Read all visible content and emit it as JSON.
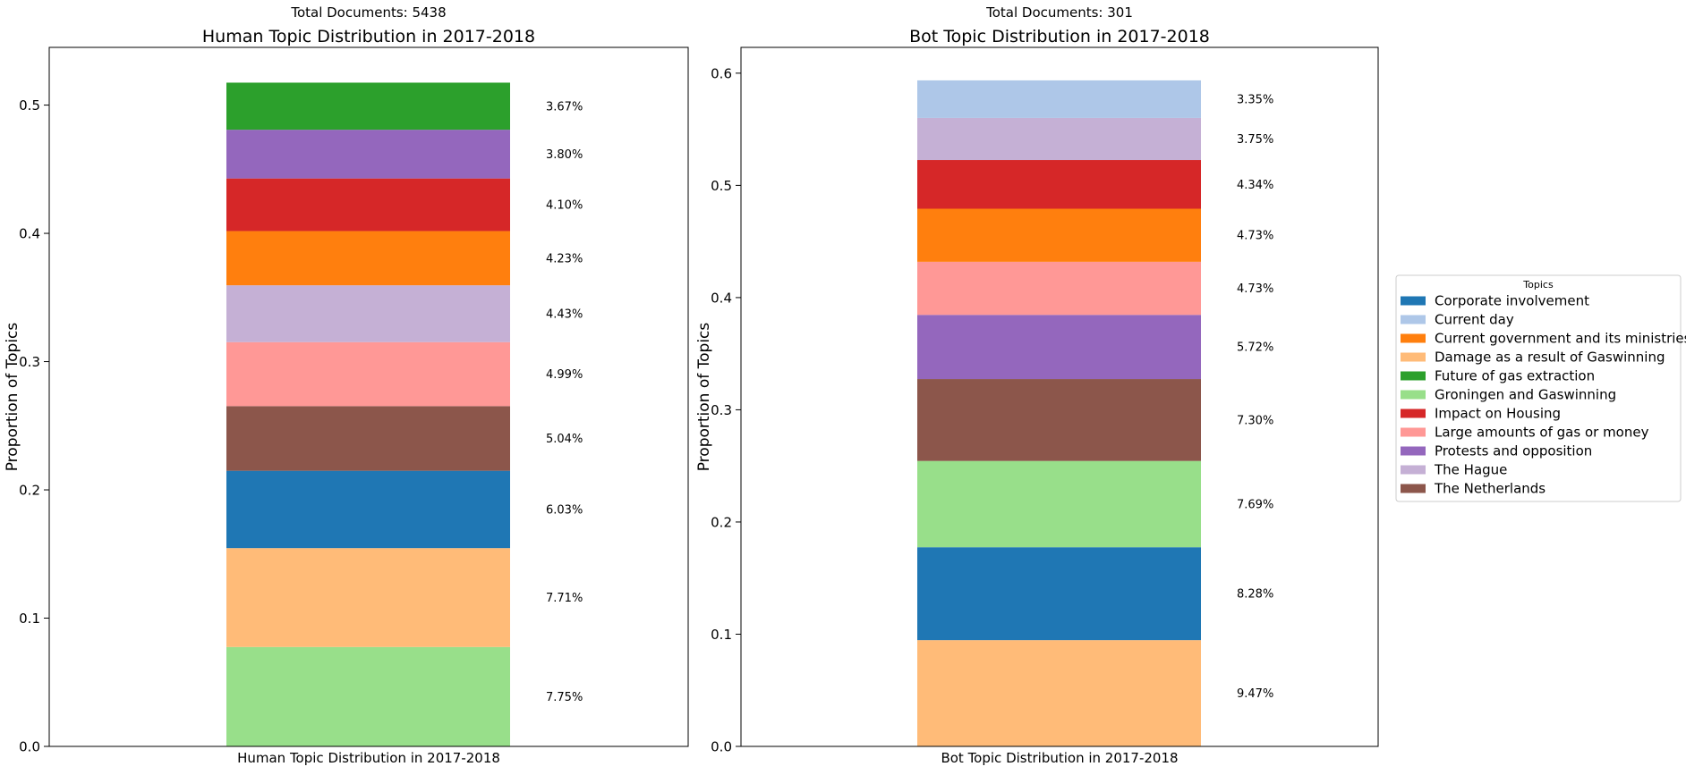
{
  "chart_data": [
    {
      "type": "bar",
      "stacked": true,
      "suptitle": "Total Documents: 5438",
      "title": "Human Topic Distribution in 2017-2018",
      "xlabel": "Human Topic Distribution in 2017-2018",
      "ylabel": "Proportion of Topics",
      "ylim": [
        0,
        0.545
      ],
      "yticks": [
        0.0,
        0.1,
        0.2,
        0.3,
        0.4,
        0.5
      ],
      "ytick_labels": [
        "0.0",
        "0.1",
        "0.2",
        "0.3",
        "0.4",
        "0.5"
      ],
      "grid": false,
      "segments": [
        {
          "topic": "Groningen and Gaswinning",
          "value": 0.0775,
          "label": "7.75%"
        },
        {
          "topic": "Damage as a result of Gaswinning",
          "value": 0.0771,
          "label": "7.71%"
        },
        {
          "topic": "Corporate involvement",
          "value": 0.0603,
          "label": "6.03%"
        },
        {
          "topic": "The Netherlands",
          "value": 0.0504,
          "label": "5.04%"
        },
        {
          "topic": "Large amounts of gas or money",
          "value": 0.0499,
          "label": "4.99%"
        },
        {
          "topic": "The Hague",
          "value": 0.0443,
          "label": "4.43%"
        },
        {
          "topic": "Current government and its ministries",
          "value": 0.0423,
          "label": "4.23%"
        },
        {
          "topic": "Impact on Housing",
          "value": 0.041,
          "label": "4.10%"
        },
        {
          "topic": "Protests and opposition",
          "value": 0.038,
          "label": "3.80%"
        },
        {
          "topic": "Future of gas extraction",
          "value": 0.0367,
          "label": "3.67%"
        }
      ]
    },
    {
      "type": "bar",
      "stacked": true,
      "suptitle": "Total Documents: 301",
      "title": "Bot Topic Distribution in 2017-2018",
      "xlabel": "Bot Topic Distribution in 2017-2018",
      "ylabel": "Proportion of Topics",
      "ylim": [
        0,
        0.623
      ],
      "yticks": [
        0.0,
        0.1,
        0.2,
        0.3,
        0.4,
        0.5,
        0.6
      ],
      "ytick_labels": [
        "0.0",
        "0.1",
        "0.2",
        "0.3",
        "0.4",
        "0.5",
        "0.6"
      ],
      "grid": false,
      "segments": [
        {
          "topic": "Damage as a result of Gaswinning",
          "value": 0.0947,
          "label": "9.47%"
        },
        {
          "topic": "Corporate involvement",
          "value": 0.0828,
          "label": "8.28%"
        },
        {
          "topic": "Groningen and Gaswinning",
          "value": 0.0769,
          "label": "7.69%"
        },
        {
          "topic": "The Netherlands",
          "value": 0.073,
          "label": "7.30%"
        },
        {
          "topic": "Protests and opposition",
          "value": 0.0572,
          "label": "5.72%"
        },
        {
          "topic": "Large amounts of gas or money",
          "value": 0.0473,
          "label": "4.73%"
        },
        {
          "topic": "Current government and its ministries",
          "value": 0.0473,
          "label": "4.73%"
        },
        {
          "topic": "Impact on Housing",
          "value": 0.0434,
          "label": "4.34%"
        },
        {
          "topic": "The Hague",
          "value": 0.0375,
          "label": "3.75%"
        },
        {
          "topic": "Current day",
          "value": 0.0335,
          "label": "3.35%"
        }
      ]
    }
  ],
  "legend": {
    "title": "Topics",
    "placement": "center-right",
    "items": [
      {
        "name": "Corporate involvement",
        "color": "#1f77b4"
      },
      {
        "name": "Current day",
        "color": "#aec7e8"
      },
      {
        "name": "Current government and its ministries",
        "color": "#ff7f0e"
      },
      {
        "name": "Damage as a result of Gaswinning",
        "color": "#ffbb78"
      },
      {
        "name": "Future of gas extraction",
        "color": "#2ca02c"
      },
      {
        "name": "Groningen and Gaswinning",
        "color": "#98df8a"
      },
      {
        "name": "Impact on Housing",
        "color": "#d62728"
      },
      {
        "name": "Large amounts of gas or money",
        "color": "#ff9896"
      },
      {
        "name": "Protests and opposition",
        "color": "#9467bd"
      },
      {
        "name": "The Hague",
        "color": "#c5b0d5"
      },
      {
        "name": "The Netherlands",
        "color": "#8c564b"
      }
    ]
  }
}
